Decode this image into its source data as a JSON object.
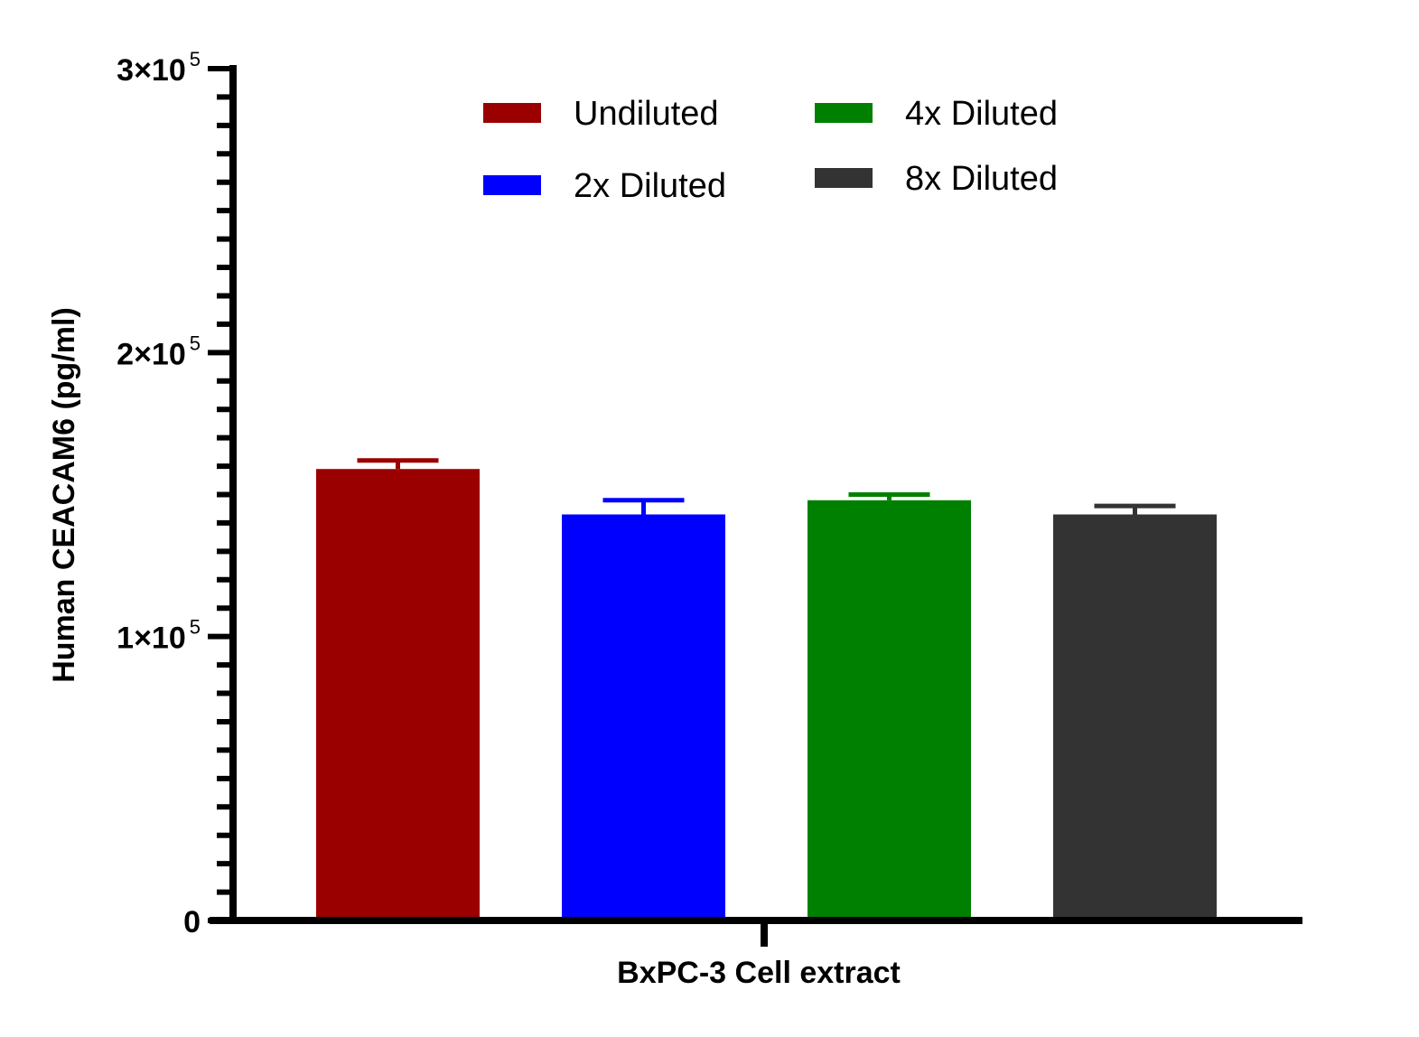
{
  "chart_data": {
    "type": "bar",
    "categories": [
      "BxPC-3 Cell extract"
    ],
    "xlabel": "BxPC-3 Cell extract",
    "ylabel": "Human CEACAM6 (pg/ml)",
    "ylim": [
      0,
      300000
    ],
    "yticks": [
      {
        "value": 0,
        "base": "0",
        "exp": ""
      },
      {
        "value": 100000,
        "base": "1×10",
        "exp": "5"
      },
      {
        "value": 200000,
        "base": "2×10",
        "exp": "5"
      },
      {
        "value": 300000,
        "base": "3×10",
        "exp": "5"
      }
    ],
    "minor_ticks_per_major": 10,
    "grid": false,
    "legend_position": "top",
    "series": [
      {
        "name": "Undiluted",
        "value": 159000,
        "error": 3000,
        "color": "#9b0000"
      },
      {
        "name": "2x Diluted",
        "value": 143000,
        "error": 5000,
        "color": "#0000ff"
      },
      {
        "name": "4x Diluted",
        "value": 148000,
        "error": 2000,
        "color": "#008000"
      },
      {
        "name": "8x Diluted",
        "value": 143000,
        "error": 3000,
        "color": "#333333"
      }
    ]
  }
}
